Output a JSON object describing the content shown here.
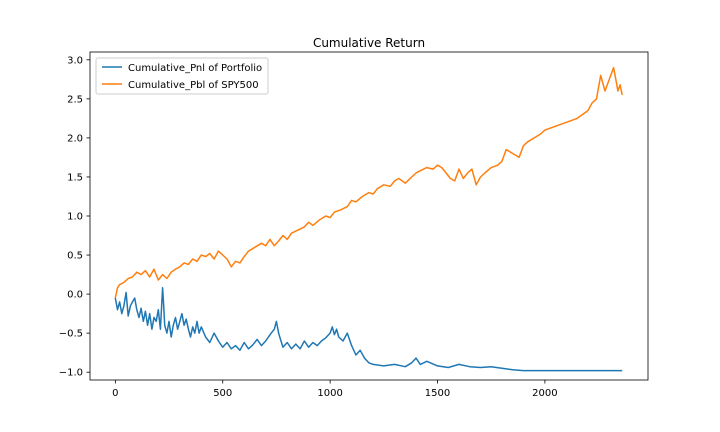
{
  "chart_data": {
    "type": "line",
    "title": "Cumulative Return",
    "xlabel": "",
    "ylabel": "",
    "xlim": [
      -118,
      2480
    ],
    "ylim": [
      -1.1,
      3.1
    ],
    "xticks": [
      0,
      500,
      1000,
      1500,
      2000
    ],
    "xtick_labels": [
      "0",
      "500",
      "1000",
      "1500",
      "2000"
    ],
    "yticks": [
      -1.0,
      -0.5,
      0.0,
      0.5,
      1.0,
      1.5,
      2.0,
      2.5,
      3.0
    ],
    "ytick_labels": [
      "−1.0",
      "−0.5",
      "0.0",
      "0.5",
      "1.0",
      "1.5",
      "2.0",
      "2.5",
      "3.0"
    ],
    "grid": false,
    "legend_position": "upper-left",
    "series": [
      {
        "name": "Cumulative_Pnl of Portfolio",
        "color": "#1f77b4",
        "x": [
          0,
          10,
          20,
          30,
          40,
          50,
          60,
          70,
          80,
          90,
          100,
          110,
          120,
          130,
          140,
          150,
          160,
          170,
          180,
          190,
          200,
          210,
          220,
          225,
          230,
          240,
          250,
          260,
          270,
          280,
          290,
          300,
          310,
          320,
          330,
          340,
          350,
          360,
          370,
          380,
          390,
          400,
          420,
          440,
          460,
          480,
          500,
          520,
          540,
          560,
          580,
          600,
          620,
          640,
          660,
          680,
          700,
          720,
          740,
          750,
          760,
          780,
          800,
          820,
          840,
          860,
          880,
          900,
          920,
          940,
          960,
          980,
          1000,
          1010,
          1020,
          1030,
          1040,
          1060,
          1080,
          1100,
          1120,
          1140,
          1160,
          1180,
          1200,
          1250,
          1300,
          1350,
          1380,
          1400,
          1420,
          1450,
          1500,
          1550,
          1600,
          1650,
          1700,
          1750,
          1800,
          1850,
          1900,
          1950,
          2000,
          2100,
          2200,
          2300,
          2360
        ],
        "y": [
          -0.05,
          -0.2,
          -0.1,
          -0.25,
          -0.15,
          0.02,
          -0.28,
          -0.15,
          -0.1,
          -0.05,
          -0.2,
          -0.3,
          -0.18,
          -0.35,
          -0.22,
          -0.4,
          -0.25,
          -0.45,
          -0.3,
          -0.35,
          -0.2,
          -0.45,
          0.08,
          -0.15,
          -0.4,
          -0.5,
          -0.35,
          -0.55,
          -0.4,
          -0.3,
          -0.45,
          -0.35,
          -0.25,
          -0.4,
          -0.32,
          -0.45,
          -0.55,
          -0.42,
          -0.5,
          -0.35,
          -0.5,
          -0.42,
          -0.55,
          -0.62,
          -0.5,
          -0.6,
          -0.68,
          -0.62,
          -0.7,
          -0.66,
          -0.72,
          -0.62,
          -0.7,
          -0.65,
          -0.58,
          -0.66,
          -0.6,
          -0.52,
          -0.45,
          -0.35,
          -0.5,
          -0.68,
          -0.62,
          -0.7,
          -0.64,
          -0.7,
          -0.6,
          -0.68,
          -0.62,
          -0.66,
          -0.6,
          -0.56,
          -0.5,
          -0.42,
          -0.52,
          -0.45,
          -0.55,
          -0.6,
          -0.5,
          -0.66,
          -0.78,
          -0.72,
          -0.82,
          -0.88,
          -0.9,
          -0.92,
          -0.9,
          -0.93,
          -0.88,
          -0.82,
          -0.9,
          -0.86,
          -0.92,
          -0.94,
          -0.9,
          -0.93,
          -0.94,
          -0.93,
          -0.95,
          -0.97,
          -0.98,
          -0.98,
          -0.98,
          -0.98,
          -0.98,
          -0.98,
          -0.98
        ]
      },
      {
        "name": "Cumulative_Pbl of SPY500",
        "color": "#ff7f0e",
        "x": [
          0,
          10,
          20,
          40,
          60,
          80,
          100,
          120,
          140,
          160,
          180,
          200,
          220,
          240,
          260,
          280,
          300,
          320,
          340,
          360,
          380,
          400,
          420,
          440,
          460,
          480,
          500,
          520,
          540,
          560,
          580,
          600,
          620,
          650,
          680,
          700,
          720,
          740,
          760,
          780,
          800,
          820,
          850,
          880,
          900,
          920,
          950,
          980,
          1000,
          1020,
          1050,
          1080,
          1100,
          1120,
          1150,
          1180,
          1200,
          1220,
          1250,
          1280,
          1300,
          1320,
          1350,
          1380,
          1400,
          1420,
          1450,
          1480,
          1500,
          1520,
          1540,
          1560,
          1580,
          1600,
          1620,
          1640,
          1660,
          1680,
          1700,
          1720,
          1750,
          1780,
          1800,
          1820,
          1850,
          1880,
          1900,
          1920,
          1950,
          1980,
          2000,
          2050,
          2100,
          2150,
          2200,
          2220,
          2240,
          2260,
          2280,
          2300,
          2320,
          2330,
          2340,
          2350,
          2360
        ],
        "y": [
          -0.05,
          0.08,
          0.12,
          0.15,
          0.2,
          0.22,
          0.28,
          0.25,
          0.3,
          0.22,
          0.32,
          0.18,
          0.25,
          0.2,
          0.28,
          0.32,
          0.35,
          0.4,
          0.38,
          0.45,
          0.42,
          0.5,
          0.48,
          0.52,
          0.45,
          0.55,
          0.5,
          0.45,
          0.35,
          0.42,
          0.4,
          0.48,
          0.55,
          0.6,
          0.65,
          0.62,
          0.7,
          0.62,
          0.68,
          0.75,
          0.7,
          0.78,
          0.82,
          0.86,
          0.92,
          0.88,
          0.95,
          1.0,
          0.98,
          1.05,
          1.08,
          1.12,
          1.2,
          1.18,
          1.25,
          1.3,
          1.28,
          1.35,
          1.4,
          1.38,
          1.45,
          1.48,
          1.42,
          1.5,
          1.55,
          1.58,
          1.62,
          1.6,
          1.65,
          1.62,
          1.55,
          1.48,
          1.45,
          1.6,
          1.48,
          1.55,
          1.6,
          1.4,
          1.5,
          1.55,
          1.62,
          1.65,
          1.7,
          1.85,
          1.8,
          1.75,
          1.9,
          1.95,
          2.0,
          2.05,
          2.1,
          2.15,
          2.2,
          2.25,
          2.35,
          2.45,
          2.5,
          2.8,
          2.6,
          2.75,
          2.9,
          2.75,
          2.6,
          2.68,
          2.55
        ]
      }
    ]
  }
}
